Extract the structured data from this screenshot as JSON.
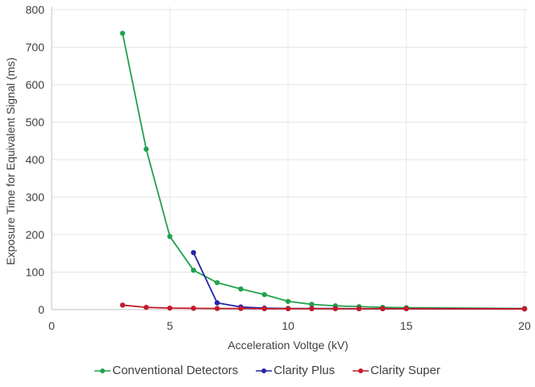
{
  "chart_data": {
    "type": "line",
    "title": "",
    "xlabel": "Acceleration Voltge (kV)",
    "ylabel": "Exposure Time for Equivalent Signal (ms)",
    "xlim": [
      0,
      20
    ],
    "ylim": [
      0,
      800
    ],
    "x_ticks": [
      0,
      5,
      10,
      15,
      20
    ],
    "y_ticks": [
      0,
      100,
      200,
      300,
      400,
      500,
      600,
      700,
      800
    ],
    "grid": true,
    "legend_position": "bottom",
    "style": {
      "background": "#ffffff",
      "grid_color": "#e4e4e4",
      "vgrid_color": "#ebebeb",
      "axis_color": "#c3c3c3",
      "text_color": "#3f3f3f",
      "marker_radius": 3.2,
      "line_width": 1.8
    },
    "series": [
      {
        "name": "Conventional Detectors",
        "color": "#21a14d",
        "x": [
          3,
          4,
          5,
          6,
          7,
          8,
          9,
          10,
          11,
          12,
          13,
          14,
          15,
          20
        ],
        "y": [
          737,
          428,
          195,
          105,
          72,
          55,
          40,
          22,
          14,
          10,
          8,
          6,
          5,
          3
        ]
      },
      {
        "name": "Clarity Plus",
        "color": "#2424a8",
        "x": [
          6,
          7,
          8,
          9,
          10,
          11,
          12,
          13,
          14,
          15,
          20
        ],
        "y": [
          152,
          18,
          7,
          4,
          3,
          3,
          3,
          2.5,
          2.5,
          2.5,
          2
        ]
      },
      {
        "name": "Clarity Super",
        "color": "#c41a28",
        "x": [
          3,
          4,
          5,
          6,
          7,
          8,
          9,
          10,
          11,
          12,
          13,
          14,
          15,
          20
        ],
        "y": [
          12,
          6,
          4,
          3.5,
          3,
          3,
          2.5,
          2.5,
          2.5,
          2.5,
          2.5,
          2.5,
          2.5,
          2
        ]
      }
    ]
  }
}
